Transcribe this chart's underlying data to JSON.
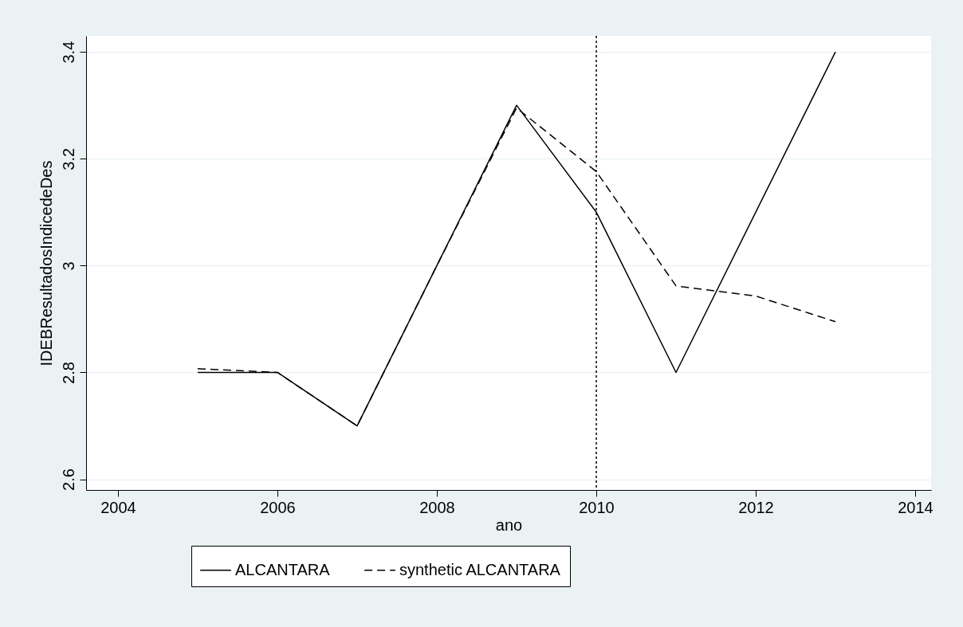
{
  "chart_data": {
    "type": "line",
    "xlabel": "ano",
    "ylabel": "IDEBResultadosIndicedeDes",
    "x": [
      2005,
      2006,
      2007,
      2008,
      2009,
      2010,
      2011,
      2012,
      2013
    ],
    "series": [
      {
        "name": "ALCANTARA",
        "color": "#000000",
        "line_style": "solid",
        "values": [
          2.8,
          2.8,
          2.7,
          3.0,
          3.3,
          3.1,
          2.8,
          3.1,
          3.4
        ]
      },
      {
        "name": "synthetic ALCANTARA",
        "color": "#000000",
        "line_style": "dashed",
        "values": [
          2.807,
          2.8,
          2.7,
          3.0,
          3.295,
          3.176,
          2.962,
          2.943,
          2.895
        ]
      }
    ],
    "xlim": [
      2003.6,
      2014.2
    ],
    "xticks": [
      2004,
      2006,
      2008,
      2010,
      2012,
      2014
    ],
    "ylim": [
      2.58,
      3.43
    ],
    "yticks": [
      2.6,
      2.8,
      3,
      3.2,
      3.4
    ],
    "grid": "y",
    "legend": "bottom",
    "marker": "none",
    "ref_lines": [
      {
        "axis": "x",
        "value": 2010,
        "line_style": "dotted"
      }
    ]
  }
}
